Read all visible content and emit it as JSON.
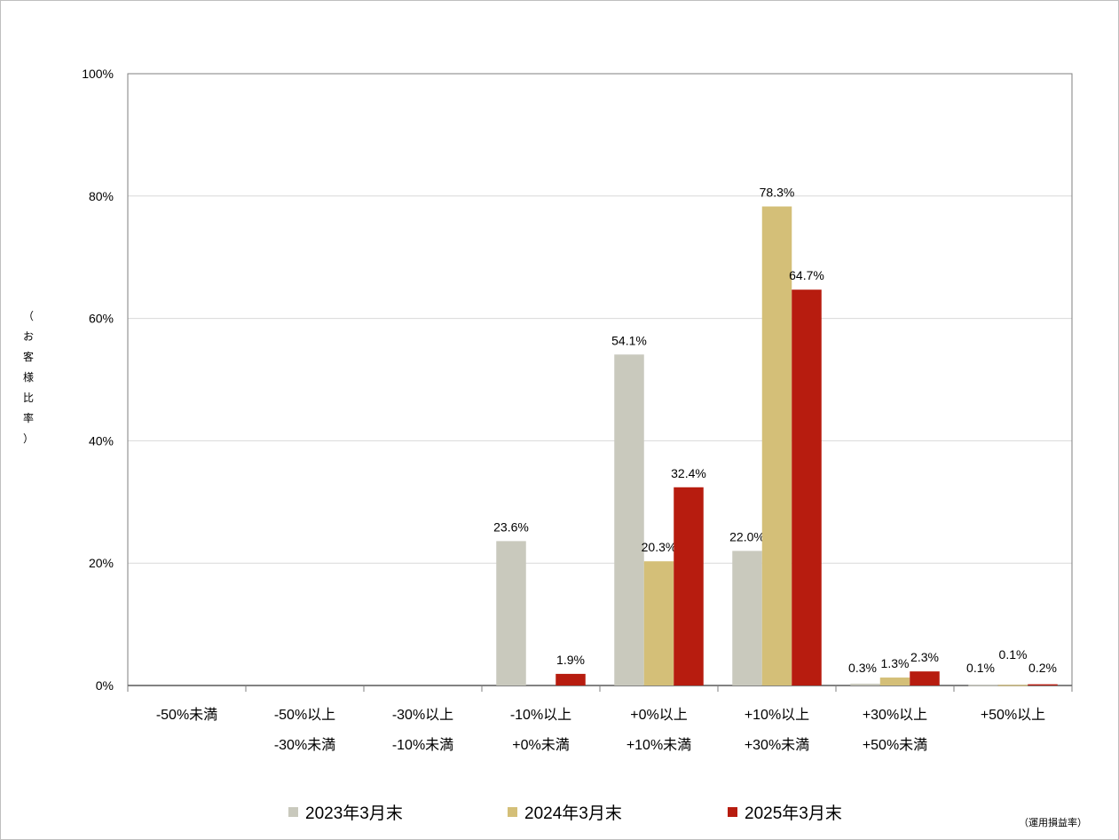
{
  "chart_data": {
    "type": "bar",
    "title": "",
    "ylabel": "（お客様比率）",
    "xlabel": "",
    "ylim": [
      0,
      100
    ],
    "yticks": [
      "0%",
      "20%",
      "40%",
      "60%",
      "80%",
      "100%"
    ],
    "grid": true,
    "legend_position": "bottom",
    "categories": [
      [
        "-50%未満"
      ],
      [
        "-50%以上",
        "-30%未満"
      ],
      [
        "-30%以上",
        "-10%未満"
      ],
      [
        "-10%以上",
        "+0%未満"
      ],
      [
        "+0%以上",
        "+10%未満"
      ],
      [
        "+10%以上",
        "+30%未満"
      ],
      [
        "+30%以上",
        "+50%未満"
      ],
      [
        "+50%以上"
      ]
    ],
    "series": [
      {
        "name": "2023年3月末",
        "color": "#c9c9bd",
        "values": [
          0,
          0,
          0,
          23.6,
          54.1,
          22.0,
          0.3,
          0.1
        ],
        "labels": [
          "",
          "",
          "",
          "23.6%",
          "54.1%",
          "22.0%",
          "0.3%",
          "0.1%"
        ]
      },
      {
        "name": "2024年3月末",
        "color": "#d4bf78",
        "values": [
          0,
          0,
          0,
          0,
          20.3,
          78.3,
          1.3,
          0.1
        ],
        "labels": [
          "",
          "",
          "",
          "",
          "20.3%",
          "78.3%",
          "1.3%",
          "0.1%"
        ]
      },
      {
        "name": "2025年3月末",
        "color": "#b71c0f",
        "values": [
          0,
          0,
          0,
          1.9,
          32.4,
          64.7,
          2.3,
          0.2
        ],
        "labels": [
          "",
          "",
          "",
          "1.9%",
          "32.4%",
          "64.7%",
          "2.3%",
          "0.2%"
        ]
      }
    ],
    "note": "（運用損益率）"
  }
}
